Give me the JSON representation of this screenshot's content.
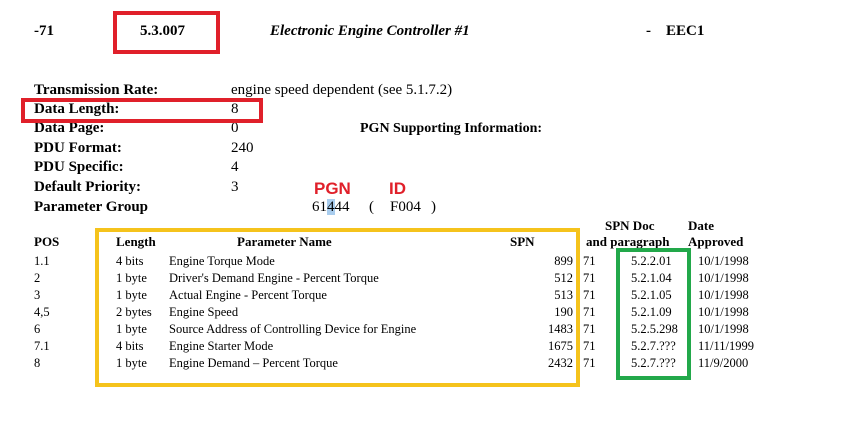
{
  "header": {
    "number": "-71",
    "section": "5.3.007",
    "title": "Electronic Engine Controller #1",
    "dash": "-",
    "acronym": "EEC1"
  },
  "params": [
    {
      "label": "Transmission Rate:",
      "value": "engine speed dependent (see 5.1.7.2)"
    },
    {
      "label": "Data Length:",
      "value": "8"
    },
    {
      "label": "Data Page:",
      "value": "0"
    },
    {
      "label": "PDU Format:",
      "value": "240"
    },
    {
      "label": "PDU Specific:",
      "value": "4"
    },
    {
      "label": "Default Priority:",
      "value": "3"
    },
    {
      "label": "Parameter Group",
      "value_pre": "61",
      "value_hl": "4",
      "value_post": "44",
      "hex_open": "(",
      "hex": "F004",
      "hex_close": ")"
    }
  ],
  "support_title": "PGN Supporting Information:",
  "annotations": {
    "pgn": "PGN",
    "id": "ID"
  },
  "table": {
    "headers": {
      "pos": "POS",
      "length": "Length",
      "name": "Parameter Name",
      "spn": "SPN",
      "doc_line1": "SPN Doc",
      "doc_line2": "and paragraph",
      "date_line1": "Date",
      "date_line2": "Approved"
    },
    "rows": [
      {
        "pos": "1.1",
        "length": "4 bits",
        "name": "Engine Torque Mode",
        "spn": "899",
        "ref": "71",
        "doc": "5.2.2.01",
        "date": "10/1/1998"
      },
      {
        "pos": "2",
        "length": "1 byte",
        "name": "Driver's Demand Engine - Percent Torque",
        "spn": "512",
        "ref": "71",
        "doc": "5.2.1.04",
        "date": "10/1/1998"
      },
      {
        "pos": "3",
        "length": "1 byte",
        "name": "Actual Engine - Percent Torque",
        "spn": "513",
        "ref": "71",
        "doc": "5.2.1.05",
        "date": "10/1/1998"
      },
      {
        "pos": "4,5",
        "length": "2 bytes",
        "name": "Engine Speed",
        "spn": "190",
        "ref": "71",
        "doc": "5.2.1.09",
        "date": "10/1/1998"
      },
      {
        "pos": "6",
        "length": "1 byte",
        "name": "Source Address of Controlling Device for Engine",
        "spn": "1483",
        "ref": "71",
        "doc": "5.2.5.298",
        "date": "10/1/1998"
      },
      {
        "pos": "7.1",
        "length": "4 bits",
        "name": "Engine Starter Mode",
        "spn": "1675",
        "ref": "71",
        "doc": "5.2.7.???",
        "date": "11/11/1999"
      },
      {
        "pos": "8",
        "length": "1 byte",
        "name": "Engine Demand – Percent Torque",
        "spn": "2432",
        "ref": "71",
        "doc": "5.2.7.???",
        "date": "11/9/2000"
      }
    ]
  }
}
